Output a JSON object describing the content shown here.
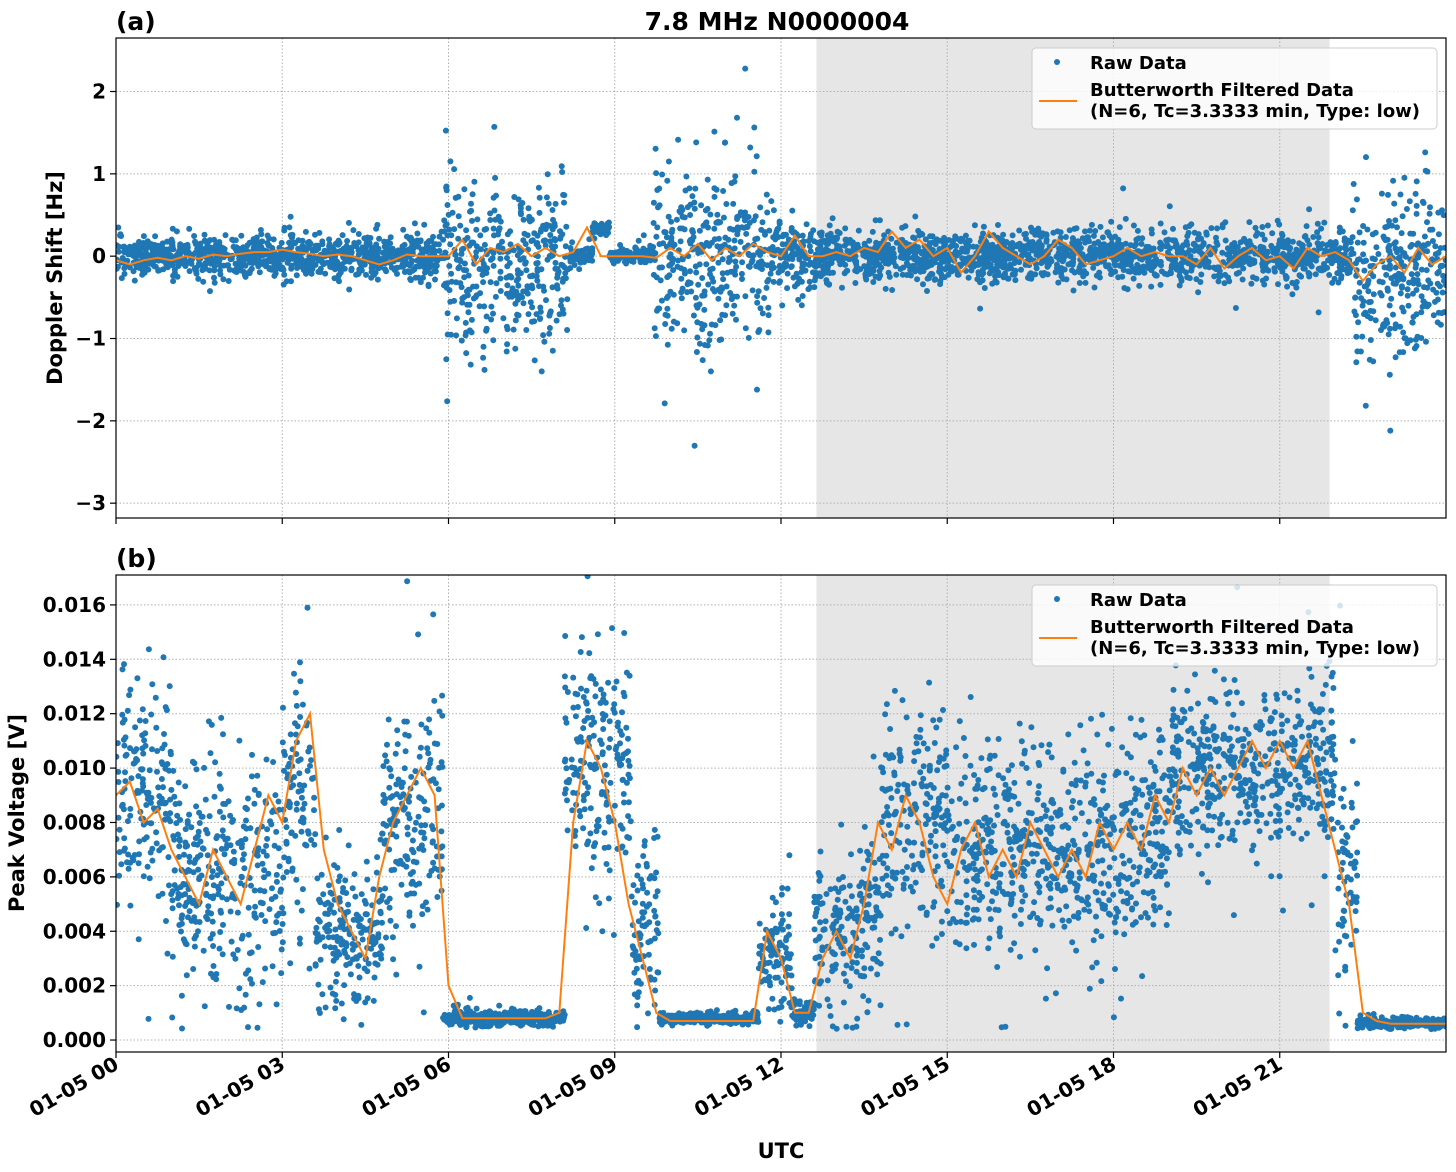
{
  "chart_data": [
    {
      "type": "scatter",
      "panel_label": "(a)",
      "title": "7.8 MHz N0000004",
      "xlabel": "",
      "ylabel": "Doppler Shift [Hz]",
      "xlim_hours": [
        0,
        24
      ],
      "ylim": [
        -3.18,
        2.65
      ],
      "yticks": [
        -3,
        -2,
        -1,
        0,
        1,
        2
      ],
      "ytick_labels": [
        "−3",
        "−2",
        "−1",
        "0",
        "1",
        "2"
      ],
      "grid": true,
      "legend": {
        "placement": "top-right",
        "entries": [
          "Raw Data",
          "Butterworth Filtered Data",
          "(N=6, Tc=3.3333 min, Type: low)"
        ]
      },
      "shaded_span_hours": [
        12.64,
        21.9
      ],
      "colors": {
        "raw": "#1f77b4",
        "filtered": "#ff7f0e",
        "span": "#e6e6e6"
      },
      "raw_segments": [
        {
          "start": 0,
          "end": 5.9,
          "center": 0.0,
          "spread": 0.25
        },
        {
          "start": 5.9,
          "end": 8.2,
          "center": -0.1,
          "spread": 1.0
        },
        {
          "start": 8.2,
          "end": 8.6,
          "center": 0.0,
          "spread": 0.1
        },
        {
          "start": 8.6,
          "end": 8.9,
          "center": 0.33,
          "spread": 0.08
        },
        {
          "start": 8.9,
          "end": 9.7,
          "center": 0.0,
          "spread": 0.1
        },
        {
          "start": 9.7,
          "end": 11.8,
          "center": 0.0,
          "spread": 1.1
        },
        {
          "start": 11.8,
          "end": 12.6,
          "center": 0.0,
          "spread": 0.45
        },
        {
          "start": 12.6,
          "end": 22.3,
          "center": 0.0,
          "spread": 0.3
        },
        {
          "start": 22.3,
          "end": 24,
          "center": -0.2,
          "spread": 1.0
        }
      ],
      "filtered": {
        "x_start_hours": 0,
        "x_step_hours": 0.25,
        "values": [
          -0.05,
          -0.1,
          -0.05,
          -0.02,
          -0.05,
          0,
          -0.03,
          0.02,
          0,
          0.03,
          0.05,
          0.05,
          0.08,
          0.05,
          0.03,
          0,
          0.02,
          0,
          -0.05,
          -0.1,
          -0.05,
          0.02,
          0,
          0,
          0,
          0.2,
          -0.1,
          0.1,
          0.05,
          0.15,
          0,
          0.1,
          0,
          0.05,
          0.35,
          0,
          0,
          0,
          0,
          -0.02,
          0.1,
          0,
          0.15,
          -0.05,
          0.1,
          0,
          0.15,
          0.05,
          0,
          0.25,
          0,
          0,
          0.05,
          0,
          0.1,
          0.05,
          0.3,
          0.1,
          0.2,
          0,
          0.1,
          -0.2,
          0,
          0.3,
          0.1,
          0,
          -0.1,
          0,
          0.2,
          0.1,
          -0.1,
          -0.05,
          0,
          0.1,
          0,
          0.05,
          0,
          0,
          -0.1,
          0.1,
          -0.15,
          0,
          0.1,
          -0.05,
          0,
          -0.15,
          0.1,
          0,
          0.05,
          -0.05,
          -0.3,
          -0.1,
          0,
          -0.2,
          0.1,
          -0.1,
          0
        ]
      }
    },
    {
      "type": "scatter",
      "panel_label": "(b)",
      "xlabel": "UTC",
      "ylabel": "Peak Voltage [V]",
      "xlim_hours": [
        0,
        24
      ],
      "ylim": [
        -0.00044,
        0.0171
      ],
      "yticks": [
        0,
        0.002,
        0.004,
        0.006,
        0.008,
        0.01,
        0.012,
        0.014,
        0.016
      ],
      "ytick_labels": [
        "0.000",
        "0.002",
        "0.004",
        "0.006",
        "0.008",
        "0.010",
        "0.012",
        "0.014",
        "0.016"
      ],
      "xtick_labels": [
        "01-05 00",
        "01-05 03",
        "01-05 06",
        "01-05 09",
        "01-05 12",
        "01-05 15",
        "01-05 18",
        "01-05 21"
      ],
      "xtick_hours": [
        0,
        3,
        6,
        9,
        12,
        15,
        18,
        21
      ],
      "grid": true,
      "legend": {
        "placement": "top-right",
        "entries": [
          "Raw Data",
          "Butterworth Filtered Data",
          "(N=6, Tc=3.3333 min, Type: low)"
        ]
      },
      "shaded_span_hours": [
        12.64,
        21.9
      ],
      "colors": {
        "raw": "#1f77b4",
        "filtered": "#ff7f0e",
        "span": "#e6e6e6"
      },
      "raw_segments": [
        {
          "start": 0,
          "end": 1,
          "center": 0.009,
          "spread": 0.004
        },
        {
          "start": 1,
          "end": 3,
          "center": 0.006,
          "spread": 0.004
        },
        {
          "start": 3,
          "end": 3.6,
          "center": 0.009,
          "spread": 0.005
        },
        {
          "start": 3.6,
          "end": 4.8,
          "center": 0.004,
          "spread": 0.003
        },
        {
          "start": 4.8,
          "end": 5.9,
          "center": 0.008,
          "spread": 0.004
        },
        {
          "start": 5.9,
          "end": 8.1,
          "center": 0.0008,
          "spread": 0.0003
        },
        {
          "start": 8.1,
          "end": 9.3,
          "center": 0.01,
          "spread": 0.004
        },
        {
          "start": 9.3,
          "end": 9.8,
          "center": 0.004,
          "spread": 0.003
        },
        {
          "start": 9.8,
          "end": 11.6,
          "center": 0.0008,
          "spread": 0.0002
        },
        {
          "start": 11.6,
          "end": 12.2,
          "center": 0.003,
          "spread": 0.002
        },
        {
          "start": 12.2,
          "end": 12.6,
          "center": 0.001,
          "spread": 0.0005
        },
        {
          "start": 12.6,
          "end": 13.8,
          "center": 0.004,
          "spread": 0.003
        },
        {
          "start": 13.8,
          "end": 15,
          "center": 0.008,
          "spread": 0.004
        },
        {
          "start": 15,
          "end": 19,
          "center": 0.007,
          "spread": 0.004
        },
        {
          "start": 19,
          "end": 22,
          "center": 0.01,
          "spread": 0.003
        },
        {
          "start": 22,
          "end": 22.4,
          "center": 0.006,
          "spread": 0.004
        },
        {
          "start": 22.4,
          "end": 24,
          "center": 0.0006,
          "spread": 0.0002
        }
      ],
      "filtered": {
        "x_start_hours": 0,
        "x_step_hours": 0.25,
        "values": [
          0.009,
          0.0095,
          0.008,
          0.0085,
          0.007,
          0.006,
          0.005,
          0.007,
          0.006,
          0.005,
          0.007,
          0.009,
          0.008,
          0.011,
          0.012,
          0.007,
          0.005,
          0.004,
          0.003,
          0.006,
          0.008,
          0.009,
          0.01,
          0.009,
          0.002,
          0.0008,
          0.0008,
          0.0008,
          0.0008,
          0.0008,
          0.0008,
          0.0008,
          0.001,
          0.008,
          0.011,
          0.01,
          0.008,
          0.005,
          0.003,
          0.001,
          0.0007,
          0.0007,
          0.0007,
          0.0007,
          0.0007,
          0.0007,
          0.0007,
          0.004,
          0.003,
          0.001,
          0.001,
          0.003,
          0.004,
          0.003,
          0.005,
          0.008,
          0.007,
          0.009,
          0.008,
          0.006,
          0.005,
          0.007,
          0.008,
          0.006,
          0.007,
          0.006,
          0.008,
          0.007,
          0.006,
          0.007,
          0.006,
          0.008,
          0.007,
          0.008,
          0.007,
          0.009,
          0.008,
          0.01,
          0.009,
          0.01,
          0.009,
          0.01,
          0.011,
          0.01,
          0.011,
          0.01,
          0.011,
          0.009,
          0.007,
          0.005,
          0.001,
          0.0007,
          0.0006,
          0.0006,
          0.0006,
          0.0006,
          0.0006
        ]
      }
    }
  ]
}
